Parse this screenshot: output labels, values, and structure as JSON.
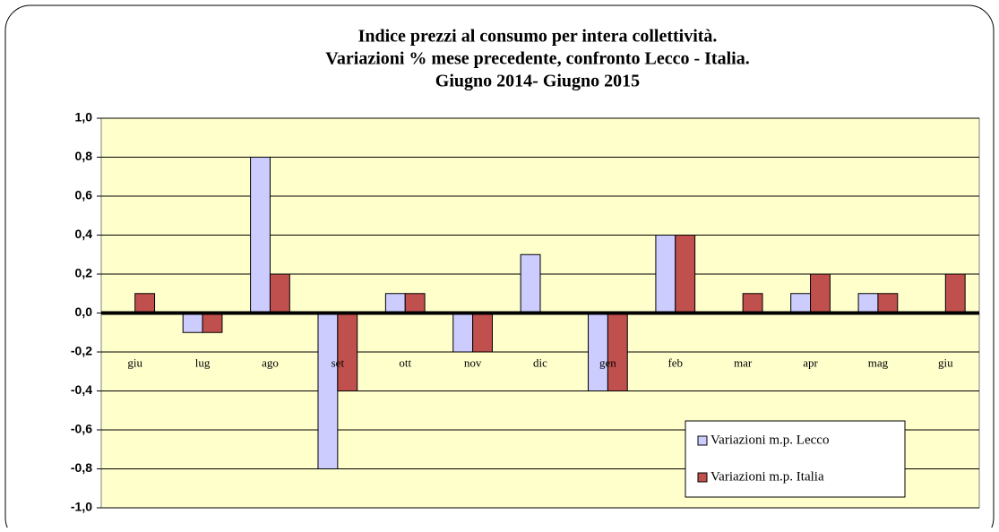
{
  "chart_data": {
    "type": "bar",
    "title": [
      "Indice prezzi al consumo per intera collettività.",
      "Variazioni % mese precedente, confronto Lecco - Italia.",
      "Giugno 2014- Giugno 2015"
    ],
    "categories": [
      "giu",
      "lug",
      "ago",
      "set",
      "ott",
      "nov",
      "dic",
      "gen",
      "feb",
      "mar",
      "apr",
      "mag",
      "giu"
    ],
    "series": [
      {
        "name": "Variazioni m.p. Lecco",
        "color": "#ccccff",
        "values": [
          0,
          -0.1,
          0.8,
          -0.8,
          0.1,
          -0.2,
          0.3,
          -0.4,
          0.4,
          0,
          0.1,
          0.1,
          0
        ]
      },
      {
        "name": "Variazioni m.p. Italia",
        "color": "#c0504d",
        "values": [
          0.1,
          -0.1,
          0.2,
          -0.4,
          0.1,
          -0.2,
          0,
          -0.4,
          0.4,
          0.1,
          0.2,
          0.1,
          0.2
        ]
      }
    ],
    "ylim": [
      -1,
      1
    ],
    "yticks": [
      {
        "value": 1,
        "label": "1,0"
      },
      {
        "value": 0.8,
        "label": "0,8"
      },
      {
        "value": 0.6,
        "label": "0,6"
      },
      {
        "value": 0.4,
        "label": "0,4"
      },
      {
        "value": 0.2,
        "label": "0,2"
      },
      {
        "value": 0,
        "label": "0,0"
      },
      {
        "value": -0.2,
        "label": "-0,2"
      },
      {
        "value": -0.4,
        "label": "-0,4"
      },
      {
        "value": -0.6,
        "label": "-0,6"
      },
      {
        "value": -0.8,
        "label": "-0,8"
      },
      {
        "value": -1,
        "label": "-1,0"
      }
    ],
    "grid": true,
    "plot_background": "#ffffcc",
    "legend": "lower right"
  }
}
